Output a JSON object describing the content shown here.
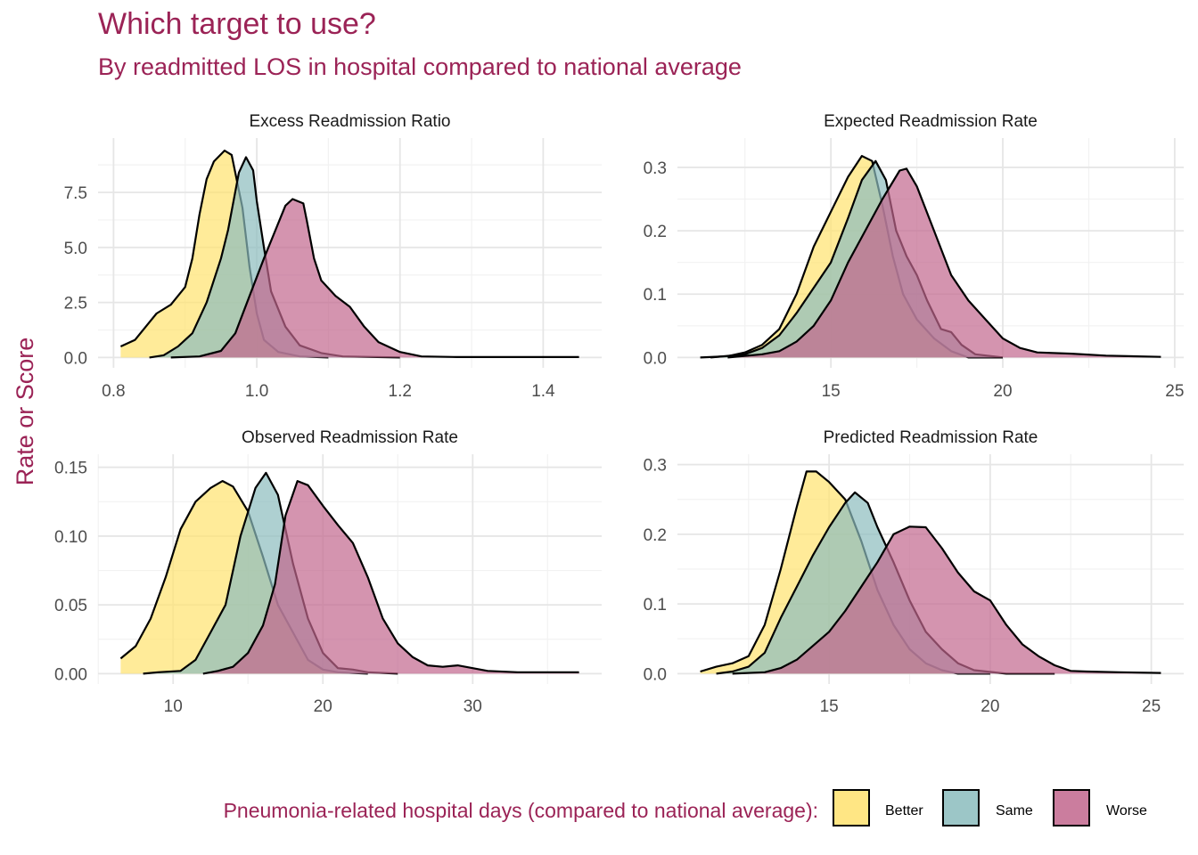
{
  "title": "Which target to use?",
  "subtitle": "By readmitted LOS in hospital compared to national average",
  "y_axis_label": "Rate or Score",
  "colors": {
    "title": "#9b2356",
    "Better": "#ffe26e",
    "Same": "#8bbcbd",
    "Worse": "#c2668d",
    "grid_major": "#e6e6e6",
    "grid_minor": "#f2f2f2"
  },
  "legend": {
    "title": "Pneumonia-related hospital days (compared to national average):",
    "position": "bottom",
    "items": [
      {
        "label": "Better",
        "color": "#ffe26e"
      },
      {
        "label": "Same",
        "color": "#8bbcbd"
      },
      {
        "label": "Worse",
        "color": "#c2668d"
      }
    ]
  },
  "chart_data": [
    {
      "type": "area",
      "title": "Excess Readmission Ratio",
      "xlim": [
        0.81,
        1.45
      ],
      "ylim": [
        0,
        9.5
      ],
      "x_ticks": [
        0.8,
        1.0,
        1.2,
        1.4
      ],
      "x_tick_labels": [
        "0.8",
        "1.0",
        "1.2",
        "1.4"
      ],
      "y_ticks": [
        0,
        2.5,
        5.0,
        7.5
      ],
      "y_tick_labels": [
        "0.0",
        "2.5",
        "5.0",
        "7.5"
      ],
      "series": [
        {
          "name": "Better",
          "points": [
            [
              0.81,
              0.5
            ],
            [
              0.83,
              0.8
            ],
            [
              0.85,
              1.6
            ],
            [
              0.86,
              2.0
            ],
            [
              0.88,
              2.4
            ],
            [
              0.9,
              3.2
            ],
            [
              0.91,
              4.5
            ],
            [
              0.92,
              6.5
            ],
            [
              0.93,
              8.1
            ],
            [
              0.94,
              8.9
            ],
            [
              0.955,
              9.4
            ],
            [
              0.965,
              9.2
            ],
            [
              0.98,
              6.8
            ],
            [
              0.99,
              4.1
            ],
            [
              1.0,
              2.0
            ],
            [
              1.01,
              0.8
            ],
            [
              1.03,
              0.25
            ],
            [
              1.06,
              0.05
            ],
            [
              1.1,
              0
            ]
          ]
        },
        {
          "name": "Same",
          "points": [
            [
              0.85,
              0
            ],
            [
              0.87,
              0.1
            ],
            [
              0.89,
              0.5
            ],
            [
              0.91,
              1.1
            ],
            [
              0.93,
              2.5
            ],
            [
              0.95,
              4.5
            ],
            [
              0.96,
              5.8
            ],
            [
              0.975,
              8.4
            ],
            [
              0.985,
              9.1
            ],
            [
              0.995,
              8.5
            ],
            [
              1.0,
              7.1
            ],
            [
              1.01,
              5.0
            ],
            [
              1.02,
              3.0
            ],
            [
              1.04,
              1.4
            ],
            [
              1.06,
              0.55
            ],
            [
              1.09,
              0.2
            ],
            [
              1.12,
              0.05
            ],
            [
              1.2,
              0
            ]
          ]
        },
        {
          "name": "Worse",
          "points": [
            [
              0.88,
              0
            ],
            [
              0.92,
              0.05
            ],
            [
              0.95,
              0.3
            ],
            [
              0.97,
              1.1
            ],
            [
              0.99,
              2.8
            ],
            [
              1.01,
              4.5
            ],
            [
              1.03,
              6.1
            ],
            [
              1.04,
              6.9
            ],
            [
              1.05,
              7.2
            ],
            [
              1.065,
              7.0
            ],
            [
              1.07,
              6.2
            ],
            [
              1.08,
              4.5
            ],
            [
              1.09,
              3.5
            ],
            [
              1.11,
              2.8
            ],
            [
              1.13,
              2.3
            ],
            [
              1.15,
              1.4
            ],
            [
              1.17,
              0.7
            ],
            [
              1.2,
              0.25
            ],
            [
              1.23,
              0.05
            ],
            [
              1.28,
              0.02
            ],
            [
              1.35,
              0.02
            ],
            [
              1.45,
              0.02
            ]
          ]
        }
      ]
    },
    {
      "type": "area",
      "title": "Expected Readmission Rate",
      "xlim": [
        11.2,
        24.6
      ],
      "ylim": [
        0,
        0.33
      ],
      "x_ticks": [
        15,
        20,
        25
      ],
      "x_tick_labels": [
        "15",
        "20",
        "25"
      ],
      "y_ticks": [
        0,
        0.1,
        0.2,
        0.3
      ],
      "y_tick_labels": [
        "0.0",
        "0.1",
        "0.2",
        "0.3"
      ],
      "series": [
        {
          "name": "Better",
          "points": [
            [
              11.2,
              0
            ],
            [
              12,
              0.002
            ],
            [
              12.5,
              0.008
            ],
            [
              13,
              0.02
            ],
            [
              13.5,
              0.045
            ],
            [
              14,
              0.1
            ],
            [
              14.5,
              0.175
            ],
            [
              15,
              0.23
            ],
            [
              15.5,
              0.285
            ],
            [
              15.9,
              0.318
            ],
            [
              16.2,
              0.31
            ],
            [
              16.5,
              0.24
            ],
            [
              16.8,
              0.16
            ],
            [
              17.1,
              0.1
            ],
            [
              17.5,
              0.06
            ],
            [
              18,
              0.03
            ],
            [
              18.5,
              0.01
            ],
            [
              19,
              0
            ],
            [
              20,
              0
            ]
          ]
        },
        {
          "name": "Same",
          "points": [
            [
              11.5,
              0
            ],
            [
              12.5,
              0.005
            ],
            [
              13,
              0.015
            ],
            [
              13.5,
              0.035
            ],
            [
              14,
              0.07
            ],
            [
              14.5,
              0.11
            ],
            [
              15,
              0.15
            ],
            [
              15.5,
              0.22
            ],
            [
              15.9,
              0.28
            ],
            [
              16.3,
              0.31
            ],
            [
              16.6,
              0.28
            ],
            [
              16.9,
              0.2
            ],
            [
              17.2,
              0.16
            ],
            [
              17.5,
              0.13
            ],
            [
              17.8,
              0.09
            ],
            [
              18.2,
              0.045
            ],
            [
              18.5,
              0.04
            ],
            [
              18.8,
              0.02
            ],
            [
              19.2,
              0.005
            ],
            [
              20,
              0
            ]
          ]
        },
        {
          "name": "Worse",
          "points": [
            [
              12,
              0
            ],
            [
              13,
              0.005
            ],
            [
              13.5,
              0.01
            ],
            [
              14,
              0.025
            ],
            [
              14.5,
              0.05
            ],
            [
              15,
              0.09
            ],
            [
              15.5,
              0.15
            ],
            [
              16,
              0.2
            ],
            [
              16.5,
              0.25
            ],
            [
              17,
              0.295
            ],
            [
              17.2,
              0.298
            ],
            [
              17.5,
              0.27
            ],
            [
              18,
              0.2
            ],
            [
              18.5,
              0.13
            ],
            [
              19,
              0.09
            ],
            [
              19.5,
              0.06
            ],
            [
              20,
              0.03
            ],
            [
              20.5,
              0.015
            ],
            [
              21,
              0.008
            ],
            [
              22,
              0.006
            ],
            [
              23,
              0.003
            ],
            [
              24.6,
              0.001
            ]
          ]
        }
      ]
    },
    {
      "type": "area",
      "title": "Observed Readmission Rate",
      "xlim": [
        6.5,
        37.1
      ],
      "ylim": [
        0,
        0.152
      ],
      "x_ticks": [
        10,
        20,
        30
      ],
      "x_tick_labels": [
        "10",
        "20",
        "30"
      ],
      "y_ticks": [
        0,
        0.05,
        0.1,
        0.15
      ],
      "y_tick_labels": [
        "0.00",
        "0.05",
        "0.10",
        "0.15"
      ],
      "series": [
        {
          "name": "Better",
          "points": [
            [
              6.5,
              0.011
            ],
            [
              7.5,
              0.02
            ],
            [
              8.5,
              0.04
            ],
            [
              9.5,
              0.07
            ],
            [
              10.5,
              0.105
            ],
            [
              11.5,
              0.125
            ],
            [
              12.5,
              0.135
            ],
            [
              13.3,
              0.14
            ],
            [
              14,
              0.136
            ],
            [
              15,
              0.118
            ],
            [
              16,
              0.085
            ],
            [
              17,
              0.05
            ],
            [
              18,
              0.03
            ],
            [
              19,
              0.01
            ],
            [
              20,
              0.003
            ],
            [
              21,
              0.001
            ],
            [
              23,
              0
            ]
          ]
        },
        {
          "name": "Same",
          "points": [
            [
              8,
              0
            ],
            [
              9,
              0.001
            ],
            [
              10.5,
              0.002
            ],
            [
              11.5,
              0.01
            ],
            [
              12.5,
              0.03
            ],
            [
              13.5,
              0.05
            ],
            [
              14.5,
              0.1
            ],
            [
              15.5,
              0.135
            ],
            [
              16.2,
              0.146
            ],
            [
              17,
              0.13
            ],
            [
              18,
              0.08
            ],
            [
              19,
              0.04
            ],
            [
              20,
              0.015
            ],
            [
              21,
              0.004
            ],
            [
              22,
              0.003
            ],
            [
              23,
              0.001
            ],
            [
              25,
              0
            ]
          ]
        },
        {
          "name": "Worse",
          "points": [
            [
              12,
              0
            ],
            [
              13,
              0.002
            ],
            [
              14,
              0.005
            ],
            [
              15,
              0.015
            ],
            [
              16,
              0.035
            ],
            [
              16.8,
              0.065
            ],
            [
              17.5,
              0.115
            ],
            [
              18.3,
              0.14
            ],
            [
              19,
              0.137
            ],
            [
              20,
              0.122
            ],
            [
              21,
              0.108
            ],
            [
              22,
              0.095
            ],
            [
              23,
              0.07
            ],
            [
              24,
              0.04
            ],
            [
              25,
              0.022
            ],
            [
              26,
              0.012
            ],
            [
              27,
              0.006
            ],
            [
              28,
              0.005
            ],
            [
              29,
              0.006
            ],
            [
              30,
              0.004
            ],
            [
              31,
              0.002
            ],
            [
              33,
              0.001
            ],
            [
              37.1,
              0.001
            ]
          ]
        }
      ]
    },
    {
      "type": "area",
      "title": "Predicted Readmission Rate",
      "xlim": [
        11.0,
        25.3
      ],
      "ylim": [
        0,
        0.3
      ],
      "x_ticks": [
        15,
        20,
        25
      ],
      "x_tick_labels": [
        "15",
        "20",
        "25"
      ],
      "y_ticks": [
        0,
        0.1,
        0.2,
        0.3
      ],
      "y_tick_labels": [
        "0.0",
        "0.1",
        "0.2",
        "0.3"
      ],
      "series": [
        {
          "name": "Better",
          "points": [
            [
              11,
              0.003
            ],
            [
              11.5,
              0.01
            ],
            [
              12,
              0.015
            ],
            [
              12.5,
              0.025
            ],
            [
              13,
              0.07
            ],
            [
              13.5,
              0.15
            ],
            [
              14,
              0.24
            ],
            [
              14.3,
              0.29
            ],
            [
              14.6,
              0.29
            ],
            [
              15,
              0.275
            ],
            [
              15.5,
              0.25
            ],
            [
              16,
              0.19
            ],
            [
              16.5,
              0.12
            ],
            [
              17,
              0.07
            ],
            [
              17.5,
              0.035
            ],
            [
              18,
              0.015
            ],
            [
              18.5,
              0.005
            ],
            [
              19,
              0
            ],
            [
              20,
              0
            ]
          ]
        },
        {
          "name": "Same",
          "points": [
            [
              11.5,
              0
            ],
            [
              12,
              0.003
            ],
            [
              12.5,
              0.01
            ],
            [
              13,
              0.03
            ],
            [
              13.5,
              0.08
            ],
            [
              14,
              0.125
            ],
            [
              14.5,
              0.17
            ],
            [
              15,
              0.21
            ],
            [
              15.5,
              0.245
            ],
            [
              15.8,
              0.26
            ],
            [
              16.2,
              0.245
            ],
            [
              16.5,
              0.21
            ],
            [
              17,
              0.16
            ],
            [
              17.5,
              0.105
            ],
            [
              18,
              0.06
            ],
            [
              18.5,
              0.035
            ],
            [
              19,
              0.015
            ],
            [
              19.5,
              0.005
            ],
            [
              20.5,
              0
            ],
            [
              22,
              0
            ]
          ]
        },
        {
          "name": "Worse",
          "points": [
            [
              12,
              0
            ],
            [
              13,
              0.002
            ],
            [
              13.5,
              0.008
            ],
            [
              14,
              0.02
            ],
            [
              14.5,
              0.04
            ],
            [
              15,
              0.06
            ],
            [
              15.5,
              0.09
            ],
            [
              16,
              0.125
            ],
            [
              16.5,
              0.16
            ],
            [
              17,
              0.2
            ],
            [
              17.5,
              0.211
            ],
            [
              18,
              0.21
            ],
            [
              18.5,
              0.18
            ],
            [
              19,
              0.145
            ],
            [
              19.5,
              0.118
            ],
            [
              20,
              0.105
            ],
            [
              20.5,
              0.07
            ],
            [
              21,
              0.042
            ],
            [
              21.5,
              0.025
            ],
            [
              22,
              0.012
            ],
            [
              22.5,
              0.004
            ],
            [
              23,
              0.003
            ],
            [
              24,
              0.002
            ],
            [
              25.3,
              0.001
            ]
          ]
        }
      ]
    }
  ]
}
